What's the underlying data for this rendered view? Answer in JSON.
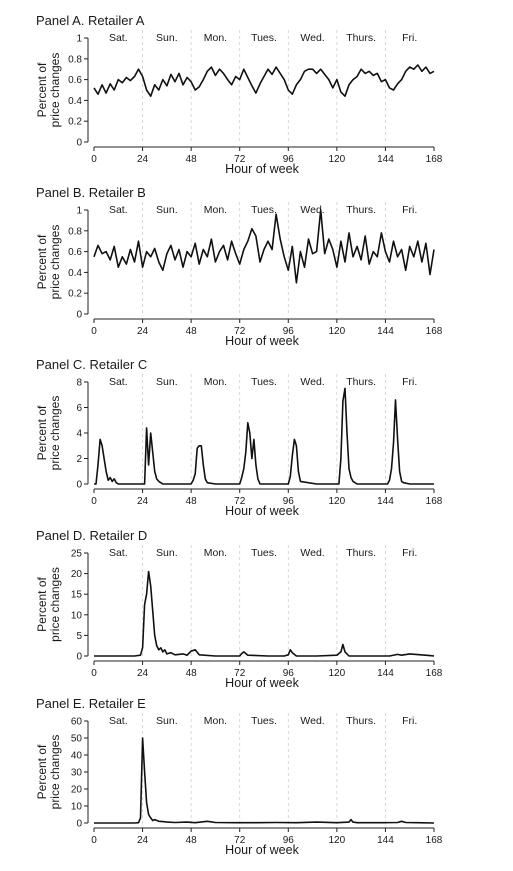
{
  "chart_data": [
    {
      "type": "line",
      "title": "Panel A. Retailer A",
      "xlabel": "Hour of week",
      "ylabel": [
        "Percent of",
        "price changes"
      ],
      "xlim": [
        0,
        168
      ],
      "ylim": [
        0,
        1
      ],
      "xticks": [
        0,
        24,
        48,
        72,
        96,
        120,
        144,
        168
      ],
      "yticks": [
        0,
        0.2,
        0.4,
        0.6,
        0.8,
        1
      ],
      "ytick_labels": [
        "0",
        "0.2",
        "0.4",
        "0.6",
        "0.8",
        "1"
      ],
      "day_labels": [
        "Sat.",
        "Sun.",
        "Mon.",
        "Tues.",
        "Wed.",
        "Thurs.",
        "Fri."
      ],
      "day_boundaries": [
        24,
        48,
        72,
        96,
        120,
        144
      ],
      "x": [
        0,
        2,
        4,
        6,
        8,
        10,
        12,
        14,
        16,
        18,
        20,
        22,
        24,
        26,
        28,
        30,
        32,
        34,
        36,
        38,
        40,
        42,
        44,
        46,
        48,
        50,
        52,
        54,
        56,
        58,
        60,
        62,
        64,
        66,
        68,
        70,
        72,
        74,
        76,
        78,
        80,
        82,
        84,
        86,
        88,
        90,
        92,
        94,
        96,
        98,
        100,
        102,
        104,
        106,
        108,
        110,
        112,
        114,
        116,
        118,
        120,
        122,
        124,
        126,
        128,
        130,
        132,
        134,
        136,
        138,
        140,
        142,
        144,
        146,
        148,
        150,
        152,
        154,
        156,
        158,
        160,
        162,
        164,
        166,
        168
      ],
      "y": [
        0.52,
        0.46,
        0.55,
        0.47,
        0.56,
        0.5,
        0.6,
        0.57,
        0.62,
        0.59,
        0.63,
        0.7,
        0.63,
        0.5,
        0.44,
        0.55,
        0.5,
        0.6,
        0.54,
        0.65,
        0.58,
        0.66,
        0.55,
        0.62,
        0.58,
        0.5,
        0.53,
        0.6,
        0.68,
        0.72,
        0.64,
        0.7,
        0.66,
        0.6,
        0.55,
        0.63,
        0.6,
        0.7,
        0.62,
        0.54,
        0.47,
        0.56,
        0.63,
        0.7,
        0.65,
        0.72,
        0.66,
        0.6,
        0.5,
        0.46,
        0.55,
        0.6,
        0.68,
        0.7,
        0.7,
        0.66,
        0.7,
        0.65,
        0.6,
        0.52,
        0.6,
        0.48,
        0.44,
        0.55,
        0.6,
        0.63,
        0.7,
        0.66,
        0.68,
        0.64,
        0.66,
        0.58,
        0.6,
        0.52,
        0.5,
        0.56,
        0.6,
        0.68,
        0.72,
        0.7,
        0.74,
        0.68,
        0.72,
        0.66,
        0.68
      ]
    },
    {
      "type": "line",
      "title": "Panel B. Retailer B",
      "xlabel": "Hour of week",
      "ylabel": [
        "Percent of",
        "price changes"
      ],
      "xlim": [
        0,
        168
      ],
      "ylim": [
        0,
        1
      ],
      "xticks": [
        0,
        24,
        48,
        72,
        96,
        120,
        144,
        168
      ],
      "yticks": [
        0,
        0.2,
        0.4,
        0.6,
        0.8,
        1
      ],
      "ytick_labels": [
        "0",
        "0.2",
        "0.4",
        "0.6",
        "0.8",
        "1"
      ],
      "day_labels": [
        "Sat.",
        "Sun.",
        "Mon.",
        "Tues.",
        "Wed.",
        "Thurs.",
        "Fri."
      ],
      "day_boundaries": [
        24,
        48,
        72,
        96,
        120,
        144
      ],
      "x": [
        0,
        2,
        4,
        6,
        8,
        10,
        12,
        14,
        16,
        18,
        20,
        22,
        24,
        26,
        28,
        30,
        32,
        34,
        36,
        38,
        40,
        42,
        44,
        46,
        48,
        50,
        52,
        54,
        56,
        58,
        60,
        62,
        64,
        66,
        68,
        70,
        72,
        74,
        76,
        78,
        80,
        82,
        84,
        86,
        88,
        90,
        92,
        94,
        96,
        98,
        100,
        102,
        104,
        106,
        108,
        110,
        112,
        114,
        116,
        118,
        120,
        122,
        124,
        126,
        128,
        130,
        132,
        134,
        136,
        138,
        140,
        142,
        144,
        146,
        148,
        150,
        152,
        154,
        156,
        158,
        160,
        162,
        164,
        166,
        168
      ],
      "y": [
        0.55,
        0.66,
        0.58,
        0.6,
        0.52,
        0.65,
        0.45,
        0.55,
        0.48,
        0.62,
        0.5,
        0.7,
        0.45,
        0.6,
        0.55,
        0.63,
        0.5,
        0.42,
        0.58,
        0.66,
        0.52,
        0.62,
        0.45,
        0.6,
        0.55,
        0.68,
        0.48,
        0.62,
        0.55,
        0.72,
        0.5,
        0.6,
        0.66,
        0.52,
        0.7,
        0.58,
        0.48,
        0.62,
        0.7,
        0.82,
        0.75,
        0.5,
        0.62,
        0.7,
        0.62,
        0.96,
        0.72,
        0.55,
        0.42,
        0.65,
        0.3,
        0.6,
        0.45,
        0.72,
        0.58,
        0.6,
        1.0,
        0.58,
        0.72,
        0.62,
        0.45,
        0.7,
        0.5,
        0.78,
        0.55,
        0.65,
        0.52,
        0.75,
        0.48,
        0.6,
        0.55,
        0.78,
        0.6,
        0.5,
        0.7,
        0.55,
        0.62,
        0.42,
        0.65,
        0.55,
        0.7,
        0.5,
        0.68,
        0.38,
        0.62
      ]
    },
    {
      "type": "line",
      "title": "Panel C. Retailer C",
      "xlabel": "Hour of week",
      "ylabel": [
        "Percent of",
        "price changes"
      ],
      "xlim": [
        0,
        168
      ],
      "ylim": [
        0,
        8
      ],
      "xticks": [
        0,
        24,
        48,
        72,
        96,
        120,
        144,
        168
      ],
      "yticks": [
        0,
        2,
        4,
        6,
        8
      ],
      "ytick_labels": [
        "0",
        "2",
        "4",
        "6",
        "8"
      ],
      "day_labels": [
        "Sat.",
        "Sun.",
        "Mon.",
        "Tues.",
        "Wed.",
        "Thurs.",
        "Fri."
      ],
      "day_boundaries": [
        24,
        48,
        72,
        96,
        120,
        144
      ],
      "x": [
        0,
        1,
        2,
        3,
        4,
        5,
        6,
        7,
        8,
        9,
        10,
        11,
        12,
        20,
        24,
        25,
        26,
        27,
        28,
        29,
        30,
        31,
        32,
        33,
        34,
        35,
        40,
        48,
        49,
        50,
        51,
        52,
        53,
        54,
        55,
        56,
        60,
        70,
        72,
        73,
        74,
        75,
        76,
        77,
        78,
        79,
        80,
        81,
        82,
        90,
        96,
        97,
        98,
        99,
        100,
        101,
        102,
        110,
        120,
        121,
        122,
        123,
        124,
        125,
        126,
        127,
        128,
        130,
        140,
        144,
        145,
        146,
        147,
        148,
        149,
        150,
        151,
        152,
        153,
        156,
        168
      ],
      "y": [
        0,
        0,
        1.5,
        3.5,
        3.0,
        2.0,
        1.0,
        0.3,
        0.5,
        0.2,
        0.4,
        0.1,
        0,
        0,
        0,
        0,
        4.4,
        1.5,
        4.0,
        2.5,
        1.0,
        0.4,
        0.2,
        0.1,
        0,
        0,
        0,
        0,
        0.3,
        0.8,
        2.8,
        3.0,
        3.0,
        1.5,
        0.4,
        0.1,
        0,
        0,
        0,
        0.5,
        1.2,
        2.5,
        4.8,
        4.0,
        2.0,
        3.5,
        1.5,
        0.4,
        0,
        0,
        0,
        0.6,
        2.2,
        3.5,
        3.0,
        1.0,
        0.2,
        0,
        0,
        0,
        2.0,
        6.5,
        7.5,
        4.0,
        1.2,
        0.5,
        0.2,
        0,
        0,
        0,
        0,
        0.3,
        1.2,
        3.2,
        6.6,
        3.5,
        1.0,
        0.2,
        0.1,
        0,
        0
      ]
    },
    {
      "type": "line",
      "title": "Panel D. Retailer D",
      "xlabel": "Hour of week",
      "ylabel": [
        "Percent of",
        "price changes"
      ],
      "xlim": [
        0,
        168
      ],
      "ylim": [
        0,
        25
      ],
      "xticks": [
        0,
        24,
        48,
        72,
        96,
        120,
        144,
        168
      ],
      "yticks": [
        0,
        5,
        10,
        15,
        20,
        25
      ],
      "ytick_labels": [
        "0",
        "5",
        "10",
        "15",
        "20",
        "25"
      ],
      "day_labels": [
        "Sat.",
        "Sun.",
        "Mon.",
        "Tues.",
        "Wed.",
        "Thurs.",
        "Fri."
      ],
      "day_boundaries": [
        24,
        48,
        72,
        96,
        120,
        144
      ],
      "x": [
        0,
        10,
        20,
        23,
        24,
        25,
        26,
        27,
        28,
        29,
        30,
        31,
        32,
        33,
        34,
        35,
        36,
        38,
        40,
        44,
        46,
        48,
        50,
        52,
        60,
        70,
        72,
        73,
        74,
        76,
        86,
        94,
        96,
        97,
        98,
        100,
        110,
        120,
        122,
        123,
        124,
        126,
        136,
        146,
        150,
        152,
        156,
        166,
        168
      ],
      "y": [
        0,
        0,
        0,
        0.2,
        2.0,
        12.5,
        15.0,
        20.5,
        17.0,
        11.0,
        5.0,
        2.5,
        1.5,
        2.0,
        1.0,
        1.5,
        0.5,
        0.8,
        0.3,
        0.5,
        0.2,
        1.2,
        1.5,
        0.3,
        0,
        0,
        0,
        0.6,
        1.0,
        0.2,
        0,
        0,
        0.3,
        1.5,
        0.8,
        0,
        0,
        0.2,
        1.0,
        2.8,
        1.0,
        0,
        0,
        0,
        0.4,
        0.2,
        0.5,
        0.1,
        0
      ]
    },
    {
      "type": "line",
      "title": "Panel E. Retailer E",
      "xlabel": "Hour of week",
      "ylabel": [
        "Percent of",
        "price changes"
      ],
      "xlim": [
        0,
        168
      ],
      "ylim": [
        0,
        60
      ],
      "xticks": [
        0,
        24,
        48,
        72,
        96,
        120,
        144,
        168
      ],
      "yticks": [
        0,
        10,
        20,
        30,
        40,
        50,
        60
      ],
      "ytick_labels": [
        "0",
        "10",
        "20",
        "30",
        "40",
        "50",
        "60"
      ],
      "day_labels": [
        "Sat.",
        "Sun.",
        "Mon.",
        "Tues.",
        "Wed.",
        "Thurs.",
        "Fri."
      ],
      "day_boundaries": [
        24,
        48,
        72,
        96,
        120,
        144
      ],
      "x": [
        0,
        10,
        20,
        22,
        23,
        24,
        25,
        26,
        27,
        28,
        29,
        30,
        32,
        34,
        36,
        40,
        46,
        50,
        56,
        60,
        70,
        80,
        90,
        100,
        110,
        120,
        126,
        127,
        128,
        130,
        140,
        150,
        152,
        154,
        160,
        168
      ],
      "y": [
        0,
        0,
        0,
        0.2,
        3.0,
        50.0,
        30.0,
        12.0,
        5.0,
        3.0,
        1.5,
        2.0,
        1.0,
        0.8,
        0.5,
        0.3,
        0.5,
        0.2,
        1.0,
        0.3,
        0.2,
        0.2,
        0.3,
        0.2,
        0.5,
        0.2,
        0.5,
        2.0,
        0.5,
        0.2,
        0.2,
        0.3,
        1.0,
        0.3,
        0.2,
        0
      ]
    }
  ]
}
